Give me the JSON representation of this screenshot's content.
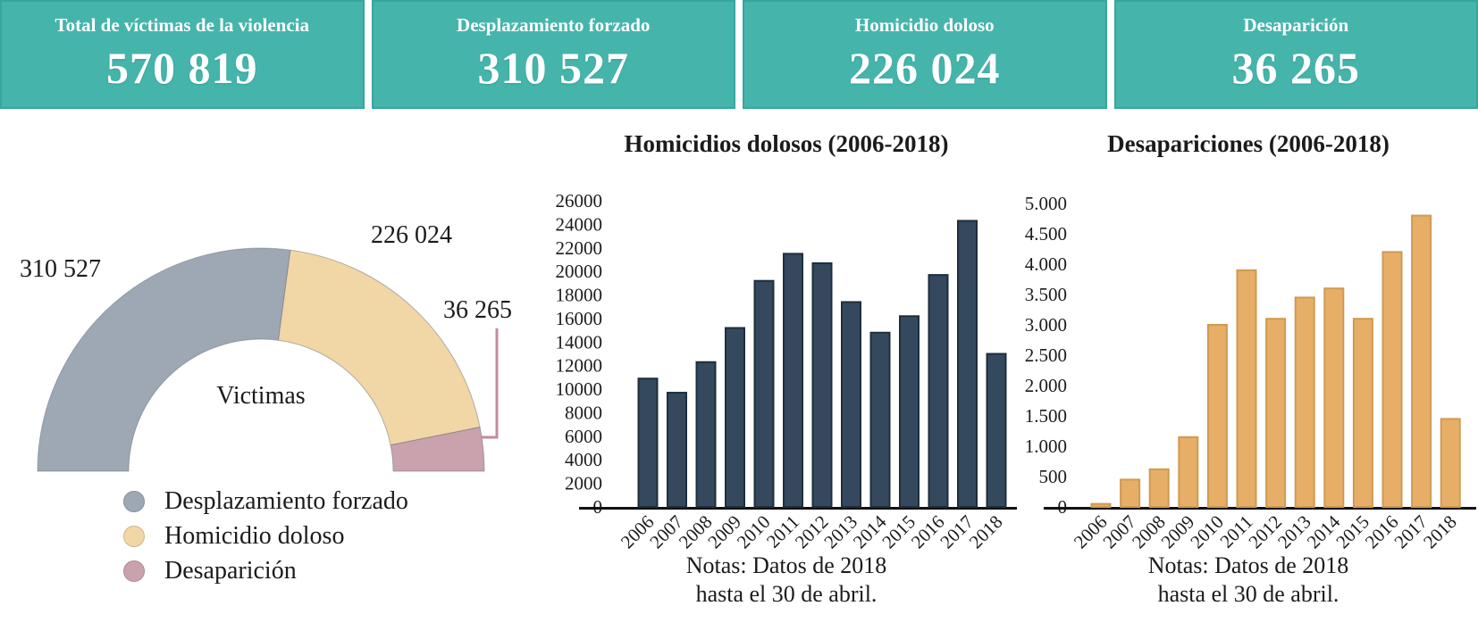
{
  "cards": [
    {
      "label": "Total de víctimas de la violencia",
      "value": "570 819"
    },
    {
      "label": "Desplazamiento forzado",
      "value": "310 527"
    },
    {
      "label": "Homicidio doloso",
      "value": "226 024"
    },
    {
      "label": "Desaparición",
      "value": "36 265"
    }
  ],
  "colors": {
    "card_bg": "#45b5ac",
    "card_border": "#36a69c",
    "card_text": "#ffffff",
    "axis": "#111111",
    "text": "#1b1b1b",
    "leader_line": "#c08d9b"
  },
  "chart_data": [
    {
      "type": "pie",
      "variant": "half-donut-gauge",
      "center_label": "Victimas",
      "legend_position": "bottom-left",
      "slices": [
        {
          "name": "Desplazamiento forzado",
          "value": 310527,
          "label": "310 527",
          "color": "#9ea8b4"
        },
        {
          "name": "Homicidio doloso",
          "value": 226024,
          "label": "226 024",
          "color": "#f1d6a6"
        },
        {
          "name": "Desaparición",
          "value": 36265,
          "label": "36 265",
          "color": "#c9a2ae"
        }
      ]
    },
    {
      "type": "bar",
      "title": "Homicidios dolosos (2006-2018)",
      "categories": [
        "2006",
        "2007",
        "2008",
        "2009",
        "2010",
        "2011",
        "2012",
        "2013",
        "2014",
        "2015",
        "2016",
        "2017",
        "2018"
      ],
      "values": [
        10900,
        9700,
        12300,
        15200,
        19200,
        21500,
        20700,
        17400,
        14800,
        16200,
        19700,
        24300,
        13000
      ],
      "ylim": [
        0,
        26000
      ],
      "yticks": [
        "0",
        "2000",
        "4000",
        "6000",
        "8000",
        "10000",
        "12000",
        "14000",
        "16000",
        "18000",
        "20000",
        "22000",
        "24000",
        "26000"
      ],
      "xlabel": "",
      "ylabel": "",
      "grid": false,
      "bar_color": "#34495e",
      "bar_border_color": "#1f2d3d",
      "note_line1": "Notas: Datos de 2018",
      "note_line2": "hasta el 30 de abril."
    },
    {
      "type": "bar",
      "title": "Desapariciones (2006-2018)",
      "categories": [
        "2006",
        "2007",
        "2008",
        "2009",
        "2010",
        "2011",
        "2012",
        "2013",
        "2014",
        "2015",
        "2016",
        "2017",
        "2018"
      ],
      "values": [
        50,
        450,
        620,
        1150,
        3000,
        3900,
        3100,
        3450,
        3600,
        3100,
        4200,
        4800,
        1450
      ],
      "ylim": [
        0,
        5000
      ],
      "yticks": [
        "0",
        "500",
        "1.000",
        "1.500",
        "2.000",
        "2.500",
        "3.000",
        "3.500",
        "4.000",
        "4.500",
        "5.000"
      ],
      "xlabel": "",
      "ylabel": "",
      "grid": false,
      "bar_color": "#e7ae68",
      "bar_border_color": "#cf9a50",
      "note_line1": "Notas: Datos de 2018",
      "note_line2": "hasta el 30 de abril."
    }
  ]
}
